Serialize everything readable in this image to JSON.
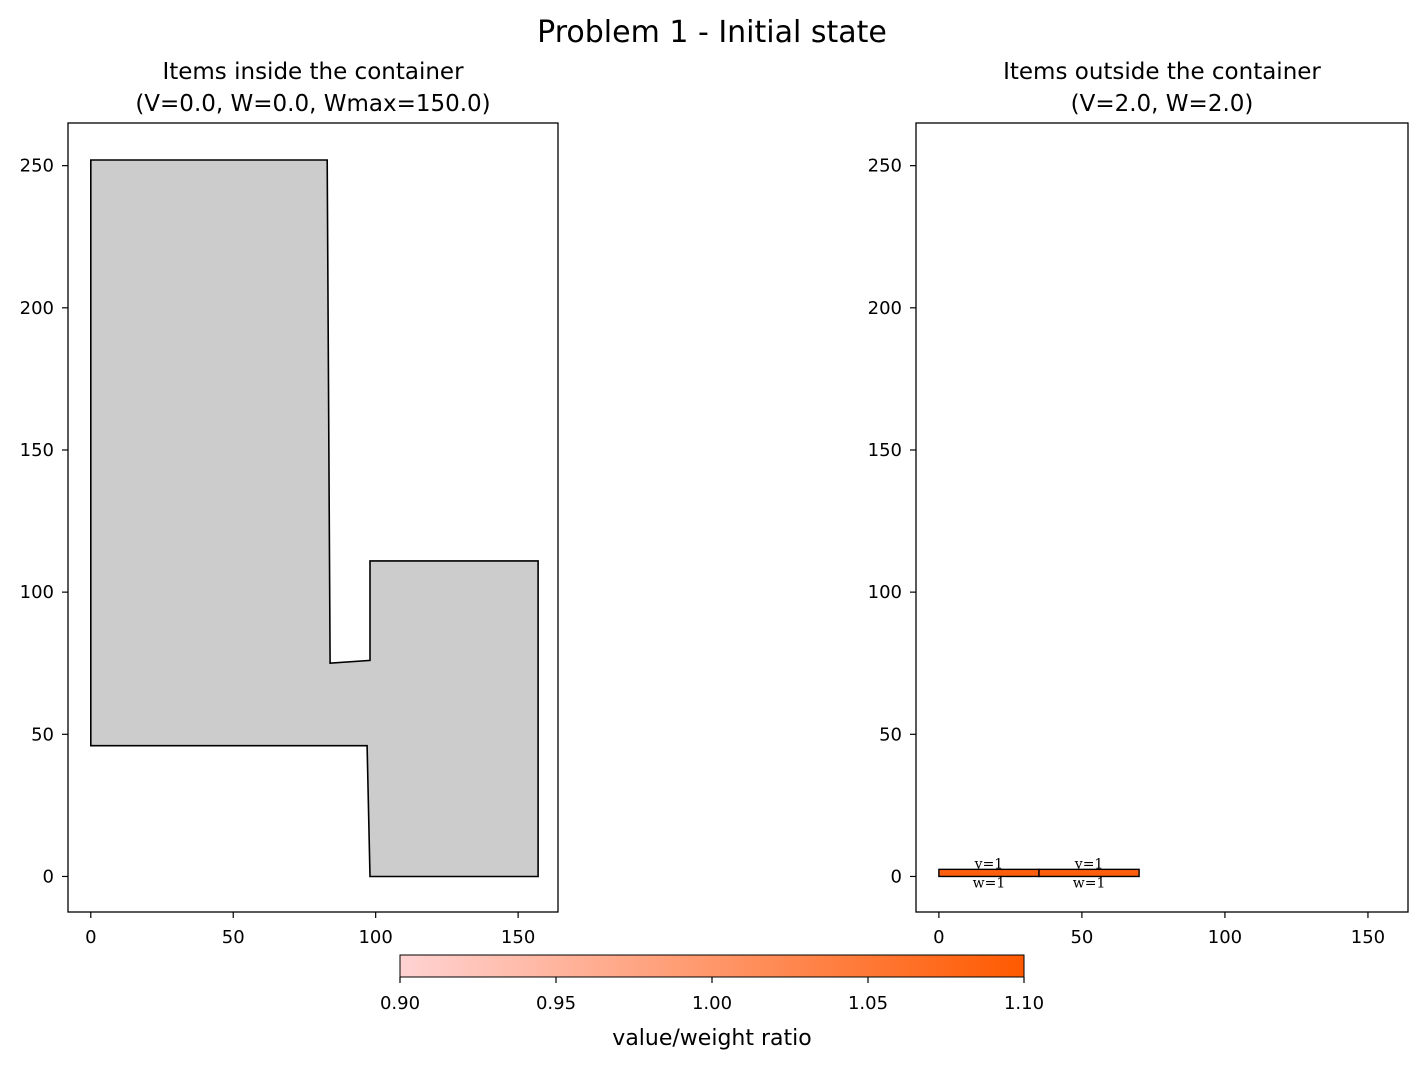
{
  "figure": {
    "title": "Problem 1 - Initial state"
  },
  "chart_data": [
    {
      "type": "area",
      "title_line1": "Items inside the container",
      "title_line2": "(V=0.0, W=0.0, Wmax=150.0)",
      "xlim": [
        -8,
        164
      ],
      "ylim": [
        -12.5,
        265
      ],
      "xticks": [
        0,
        50,
        100,
        150
      ],
      "yticks": [
        0,
        50,
        100,
        150,
        200,
        250
      ],
      "container_polygon": [
        [
          0,
          252
        ],
        [
          83,
          252
        ],
        [
          84,
          75
        ],
        [
          98,
          76
        ],
        [
          98,
          111
        ],
        [
          157,
          111
        ],
        [
          157,
          0
        ],
        [
          98,
          0
        ],
        [
          97,
          46
        ],
        [
          0,
          46
        ]
      ],
      "container_color": "#cccccc",
      "items": []
    },
    {
      "type": "area",
      "title_line1": "Items outside the container",
      "title_line2": "(V=2.0, W=2.0)",
      "xlim": [
        -8,
        164
      ],
      "ylim": [
        -12.5,
        265
      ],
      "xticks": [
        0,
        50,
        100,
        150
      ],
      "yticks": [
        0,
        50,
        100,
        150,
        200,
        250
      ],
      "items": [
        {
          "x0": 0,
          "x1": 35,
          "y0": 0,
          "y1": 2.5,
          "value_label": "v=1",
          "weight_label": "w=1",
          "ratio": 1.1,
          "color": "#ff5e0d"
        },
        {
          "x0": 35,
          "x1": 70,
          "y0": 0,
          "y1": 2.5,
          "value_label": "v=1",
          "weight_label": "w=1",
          "ratio": 1.1,
          "color": "#ff5e0d"
        }
      ]
    }
  ],
  "colorbar": {
    "label": "value/weight ratio",
    "min": 0.9,
    "max": 1.1,
    "ticks": [
      "0.90",
      "0.95",
      "1.00",
      "1.05",
      "1.10"
    ],
    "color_low": "#ffd3d3",
    "color_high": "#ff5a00"
  }
}
